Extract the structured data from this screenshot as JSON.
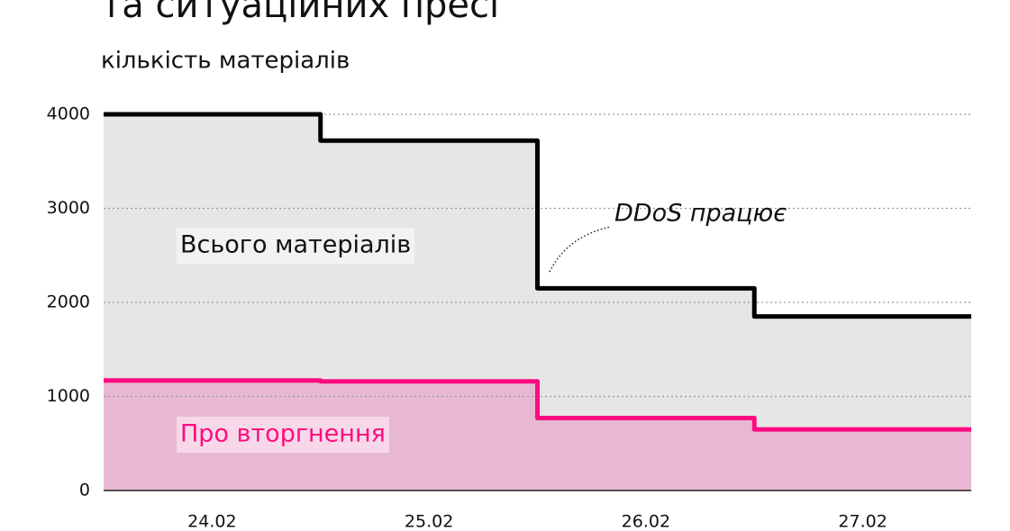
{
  "chart_data": {
    "type": "step-area",
    "title": "та ситуаційних пресі",
    "y_label": "кількість матеріалів",
    "categories": [
      "24.02",
      "25.02",
      "26.02",
      "27.02"
    ],
    "series": [
      {
        "name": "Всього матеріалів",
        "color": "#000000",
        "fill": "#e6e6e6",
        "values": [
          4000,
          3720,
          2150,
          1850
        ]
      },
      {
        "name": "Про вторгнення",
        "color": "#ff0a80",
        "fill": "#e8b8d2",
        "values": [
          1170,
          1160,
          770,
          650
        ]
      }
    ],
    "annotation": "DDoS працює",
    "ylim": [
      0,
      4000
    ],
    "yticks": [
      0,
      1000,
      2000,
      3000,
      4000
    ],
    "grid": true
  }
}
